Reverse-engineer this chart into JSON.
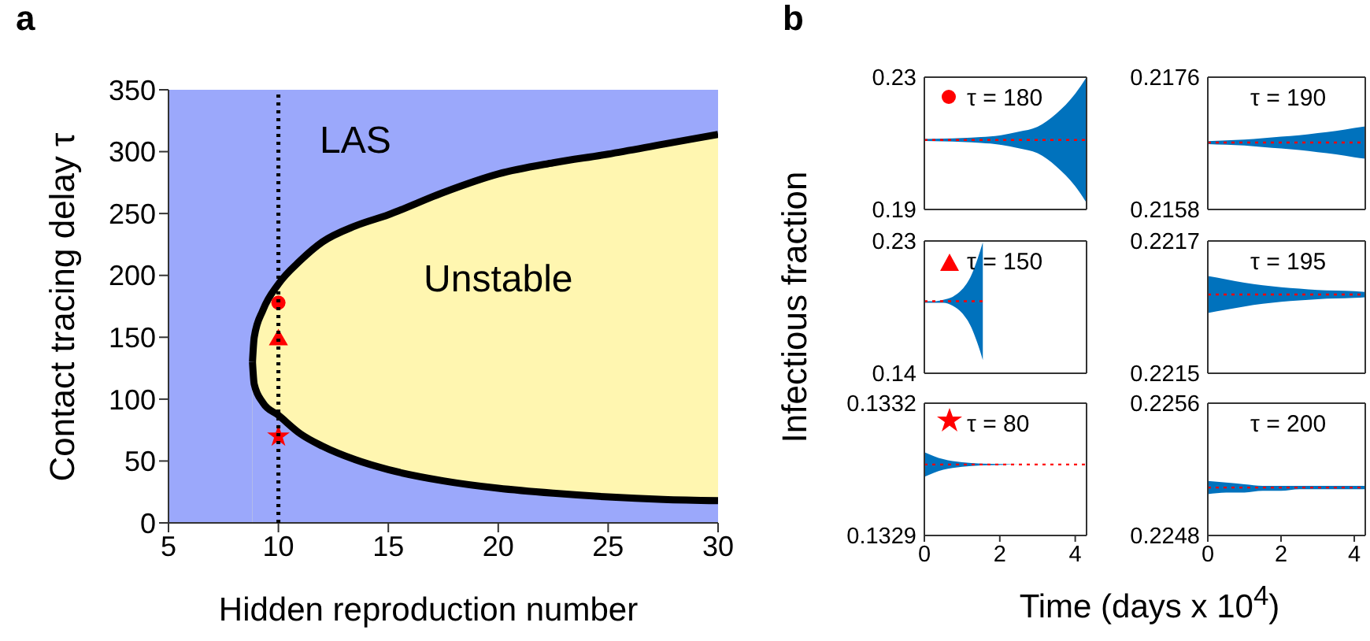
{
  "chart_data": [
    {
      "type": "line",
      "title": "a",
      "xlabel": "Hidden reproduction number",
      "ylabel": "Contact tracing delay τ",
      "xlim": [
        5,
        30
      ],
      "xticks": [
        5,
        10,
        15,
        20,
        25,
        30
      ],
      "ylim": [
        0,
        350
      ],
      "yticks": [
        0,
        50,
        100,
        150,
        200,
        250,
        300,
        350
      ],
      "bands": [
        {
          "axis": "x",
          "from": 5,
          "to": 30,
          "color": "#9ba8fb"
        }
      ],
      "ref_lines": [
        {
          "axis": "x",
          "value": 10,
          "color": "#000000",
          "line_style": "dotted"
        }
      ],
      "series": [
        {
          "type": "area",
          "color": "#fff6b0",
          "x": [
            8.82,
            8.9,
            9.3,
            10,
            11,
            12,
            13.5,
            15,
            17.5,
            20,
            22.5,
            25,
            27.5,
            30
          ],
          "values": [
            130,
            150,
            172,
            193,
            212,
            227,
            240,
            249,
            267,
            282,
            291,
            298,
            306,
            314
          ]
        },
        {
          "type": "area",
          "color": "#9ba8fb",
          "x": [
            8.82,
            8.9,
            9.3,
            10,
            11,
            12,
            13.5,
            15,
            17.5,
            20,
            22.5,
            25,
            27.5,
            30
          ],
          "values": [
            130,
            112,
            97,
            87,
            72,
            62,
            51,
            43,
            34,
            28,
            24,
            21,
            19,
            18
          ]
        },
        {
          "type": "scatter",
          "color": "#ff0000",
          "marker": "circle",
          "x": [
            10
          ],
          "values": [
            178
          ]
        },
        {
          "type": "scatter",
          "color": "#ff0000",
          "marker": "triangle",
          "x": [
            10
          ],
          "values": [
            148
          ]
        },
        {
          "type": "scatter",
          "color": "#ff0000",
          "marker": "star",
          "x": [
            10
          ],
          "values": [
            70
          ]
        }
      ],
      "annotations": [
        "LAS",
        "Unstable"
      ]
    },
    {
      "type": "line",
      "title": "b",
      "annotations": [
        "τ = 180"
      ],
      "xlim": [
        0,
        4.3
      ],
      "xticks": [
        0,
        2,
        4
      ],
      "ylim": [
        0.19,
        0.23
      ],
      "yticks": [
        0.19,
        0.23
      ],
      "tick_labels": "y",
      "series": [
        {
          "color": "#ff0000",
          "line_style": "dotted",
          "x": [
            0,
            0.5,
            1,
            1.5,
            2,
            2.5,
            3,
            3.5,
            4,
            4.3
          ],
          "values": [
            0.211,
            0.211,
            0.211,
            0.211,
            0.211,
            0.211,
            0.211,
            0.211,
            0.211,
            0.211
          ],
          "upper": [
            0.2113,
            0.2114,
            0.2116,
            0.2119,
            0.2124,
            0.2135,
            0.215,
            0.219,
            0.225,
            0.23
          ],
          "lower": [
            0.2107,
            0.2106,
            0.2104,
            0.2101,
            0.2096,
            0.2085,
            0.207,
            0.203,
            0.197,
            0.192
          ]
        }
      ]
    },
    {
      "type": "line",
      "annotations": [
        "τ = 190"
      ],
      "xlim": [
        0,
        4.3
      ],
      "xticks": [
        0,
        2,
        4
      ],
      "ylim": [
        0.2158,
        0.2176
      ],
      "yticks": [
        0.2158,
        0.2176
      ],
      "tick_labels": "y",
      "series": [
        {
          "color": "#ff0000",
          "line_style": "dotted",
          "x": [
            0,
            0.5,
            1,
            1.5,
            2,
            2.5,
            3,
            3.5,
            4,
            4.3
          ],
          "values": [
            0.21671,
            0.21671,
            0.21671,
            0.21671,
            0.21671,
            0.21671,
            0.21671,
            0.21671,
            0.21671,
            0.21671
          ],
          "upper": [
            0.21673,
            0.21674,
            0.21675,
            0.21677,
            0.21679,
            0.21681,
            0.21684,
            0.21687,
            0.21691,
            0.21693
          ],
          "lower": [
            0.21669,
            0.21668,
            0.21667,
            0.21665,
            0.21663,
            0.21661,
            0.21658,
            0.21655,
            0.21651,
            0.21649
          ]
        }
      ]
    },
    {
      "type": "line",
      "ylabel": "Infectious fraction",
      "annotations": [
        "τ = 150"
      ],
      "xlim": [
        0,
        4.3
      ],
      "xticks": [
        0,
        2,
        4
      ],
      "ylim": [
        0.14,
        0.23
      ],
      "yticks": [
        0.14,
        0.23
      ],
      "tick_labels": "y",
      "series": [
        {
          "color": "#ff0000",
          "line_style": "dotted",
          "x": [
            0,
            0.25,
            0.5,
            0.75,
            1,
            1.25,
            1.4,
            1.55
          ],
          "values": [
            0.189,
            0.189,
            0.189,
            0.189,
            0.189,
            0.189,
            0.189,
            0.189
          ],
          "upper": [
            0.189,
            0.189,
            0.19,
            0.192,
            0.197,
            0.207,
            0.217,
            0.229
          ],
          "lower": [
            0.188,
            0.188,
            0.188,
            0.186,
            0.181,
            0.171,
            0.161,
            0.149
          ]
        }
      ]
    },
    {
      "type": "line",
      "annotations": [
        "τ = 195"
      ],
      "xlim": [
        0,
        4.3
      ],
      "xticks": [
        0,
        2,
        4
      ],
      "ylim": [
        0.2215,
        0.2217
      ],
      "yticks": [
        0.2215,
        0.2217
      ],
      "tick_labels": "y",
      "series": [
        {
          "color": "#ff0000",
          "line_style": "dotted",
          "x": [
            0,
            0.5,
            1,
            1.5,
            2,
            2.5,
            3,
            3.5,
            4,
            4.3
          ],
          "values": [
            0.221619,
            0.221619,
            0.221619,
            0.221619,
            0.221619,
            0.221619,
            0.221619,
            0.221619,
            0.221619,
            0.221619
          ],
          "upper": [
            0.221647,
            0.221642,
            0.221637,
            0.221633,
            0.22163,
            0.221628,
            0.221626,
            0.221625,
            0.221624,
            0.221623
          ],
          "lower": [
            0.221591,
            0.221596,
            0.221601,
            0.221605,
            0.221608,
            0.22161,
            0.221612,
            0.221613,
            0.221614,
            0.221615
          ]
        }
      ]
    },
    {
      "type": "line",
      "xlabel": "Time (days x 10$^{4}$)",
      "annotations": [
        "τ = 80"
      ],
      "xlim": [
        0,
        4.3
      ],
      "xticks": [
        0,
        2,
        4
      ],
      "ylim": [
        0.1329,
        0.1332
      ],
      "yticks": [
        0.1329,
        0.1332
      ],
      "series": [
        {
          "color": "#ff0000",
          "line_style": "dotted",
          "x": [
            0,
            0.5,
            1,
            1.5,
            2,
            2.5,
            3,
            3.5,
            4,
            4.3
          ],
          "values": [
            0.133061,
            0.133061,
            0.133061,
            0.133061,
            0.133061,
            0.133061,
            0.133061,
            0.133061,
            0.133061,
            0.133061
          ],
          "upper": [
            0.133089,
            0.133073,
            0.133066,
            0.133063,
            0.133062,
            0.133061,
            0.133061,
            0.133061,
            0.133061,
            0.133061
          ],
          "lower": [
            0.133033,
            0.133049,
            0.133056,
            0.133059,
            0.13306,
            0.133061,
            0.133061,
            0.133061,
            0.133061,
            0.133061
          ]
        }
      ]
    },
    {
      "type": "line",
      "annotations": [
        "τ = 200"
      ],
      "xlim": [
        0,
        4.3
      ],
      "xticks": [
        0,
        2,
        4
      ],
      "ylim": [
        0.2248,
        0.2256
      ],
      "yticks": [
        0.2248,
        0.2256
      ],
      "series": [
        {
          "color": "#ff0000",
          "line_style": "dotted",
          "x": [
            0,
            0.5,
            1,
            1.5,
            2,
            2.5,
            3,
            3.5,
            4,
            4.3
          ],
          "values": [
            0.22509,
            0.22509,
            0.22509,
            0.22509,
            0.22509,
            0.22509,
            0.22509,
            0.22509,
            0.22509,
            0.22509
          ],
          "upper": [
            0.22513,
            0.22512,
            0.22511,
            0.2251,
            0.2251,
            0.2251,
            0.2251,
            0.2251,
            0.2251,
            0.2251
          ],
          "lower": [
            0.22505,
            0.22506,
            0.22506,
            0.22507,
            0.22507,
            0.22508,
            0.22508,
            0.22508,
            0.22508,
            0.22508
          ]
        }
      ]
    }
  ]
}
